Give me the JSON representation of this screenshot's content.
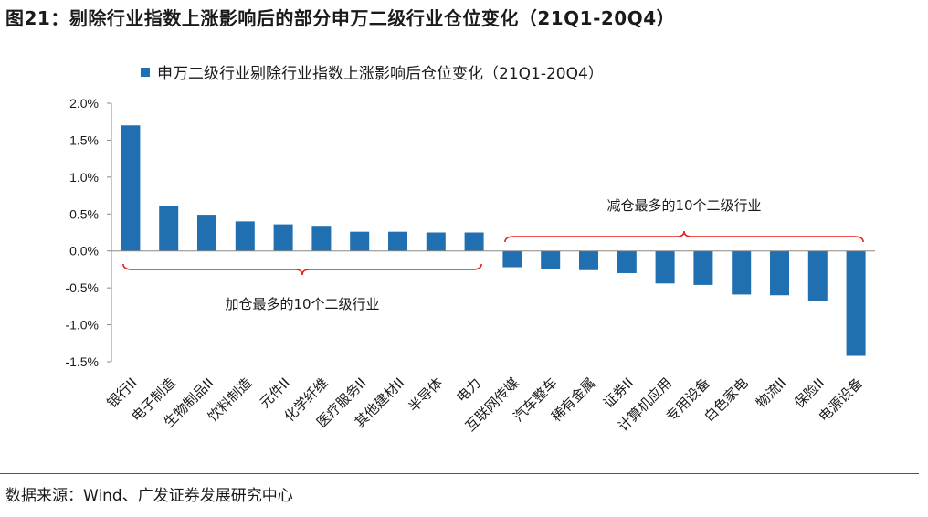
{
  "figure_title": "图21：剔除行业指数上涨影响后的部分申万二级行业仓位变化（21Q1-20Q4）",
  "source": "数据来源：Wind、广发证券发展研究中心",
  "colors": {
    "bar": "#1f6fb1",
    "brace": "#e8211c",
    "axis": "#888888"
  },
  "chart_data": {
    "type": "bar",
    "title": "",
    "legend": [
      "申万二级行业剔除行业指数上涨影响后仓位变化（21Q1-20Q4）"
    ],
    "categories": [
      "银行II",
      "电子制造",
      "生物制品II",
      "饮料制造",
      "元件II",
      "化学纤维",
      "医疗服务II",
      "其他建材II",
      "半导体",
      "电力",
      "互联网传媒",
      "汽车整车",
      "稀有金属",
      "证券II",
      "计算机应用",
      "专用设备",
      "白色家电",
      "物流II",
      "保险II",
      "电源设备"
    ],
    "values": [
      1.7,
      0.61,
      0.49,
      0.4,
      0.36,
      0.34,
      0.26,
      0.26,
      0.25,
      0.25,
      -0.22,
      -0.25,
      -0.26,
      -0.3,
      -0.44,
      -0.46,
      -0.59,
      -0.6,
      -0.68,
      -1.42
    ],
    "unit": "%",
    "ylim": [
      -1.5,
      2.0
    ],
    "yticks": [
      "-1.5%",
      "-1.0%",
      "-0.5%",
      "0.0%",
      "0.5%",
      "1.0%",
      "1.5%",
      "2.0%"
    ],
    "ytick_values": [
      -1.5,
      -1.0,
      -0.5,
      0.0,
      0.5,
      1.0,
      1.5,
      2.0
    ],
    "xlabel": "",
    "ylabel": "",
    "annotations": [
      {
        "text": "加仓最多的10个二级行业",
        "from_index": 0,
        "to_index": 9,
        "side": "below"
      },
      {
        "text": "减仓最多的10个二级行业",
        "from_index": 10,
        "to_index": 19,
        "side": "above"
      }
    ]
  }
}
